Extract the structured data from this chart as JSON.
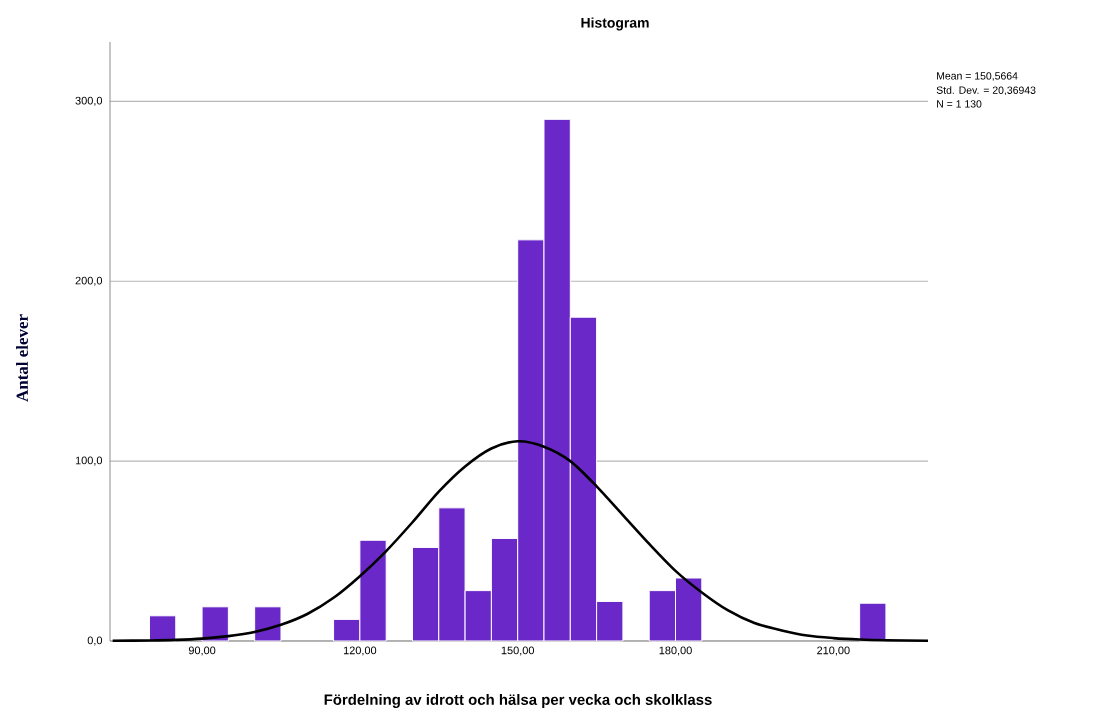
{
  "chart_data": {
    "type": "histogram",
    "title": "Histogram",
    "xlabel": "Fördelning av idrott och hälsa per vecka och skolklass",
    "ylabel": "Antal elever",
    "bins": [
      80,
      85,
      90,
      95,
      100,
      105,
      110,
      115,
      120,
      125,
      130,
      135,
      140,
      145,
      150,
      155,
      160,
      165,
      170,
      175,
      180,
      185,
      190,
      195,
      200,
      205,
      210,
      215,
      220
    ],
    "series": [
      {
        "color": "#6a28c8",
        "values": [
          14,
          0,
          19,
          0,
          19,
          0,
          0,
          12,
          56,
          0,
          52,
          74,
          28,
          57,
          223,
          290,
          180,
          22,
          0,
          28,
          35,
          0,
          0,
          0,
          0,
          0,
          0,
          21
        ]
      },
      {
        "type": "line",
        "color": "#000000",
        "x": [
          73,
          80,
          85,
          90,
          95,
          100,
          105,
          110,
          115,
          120,
          125,
          130,
          135,
          140,
          145,
          150,
          155,
          160,
          165,
          170,
          175,
          180,
          185,
          190,
          195,
          200,
          205,
          210,
          215,
          220,
          228
        ],
        "values": [
          0.1,
          0.3,
          0.6,
          1.3,
          2.7,
          5,
          9,
          15,
          24,
          36,
          50,
          66,
          83,
          97,
          107,
          111,
          108,
          100,
          86,
          70,
          54,
          39,
          27,
          17,
          10,
          6,
          3,
          1.6,
          0.8,
          0.4,
          0.1
        ]
      }
    ],
    "xlim": [
      72.5,
      228
    ],
    "ylim": [
      0,
      333
    ],
    "xticks": [
      {
        "value": 90,
        "label": "90,00"
      },
      {
        "value": 120,
        "label": "120,00"
      },
      {
        "value": 150,
        "label": "150,00"
      },
      {
        "value": 180,
        "label": "180,00"
      },
      {
        "value": 210,
        "label": "210,00"
      }
    ],
    "yticks": [
      {
        "value": 0,
        "label": "0,0"
      },
      {
        "value": 100,
        "label": "100,0"
      },
      {
        "value": 200,
        "label": "200,0"
      },
      {
        "value": 300,
        "label": "300,0"
      }
    ],
    "grid": "y",
    "annotations": [
      "Mean = 150,5664",
      "Std. Dev. = 20,36943",
      "N = 1 130"
    ]
  }
}
